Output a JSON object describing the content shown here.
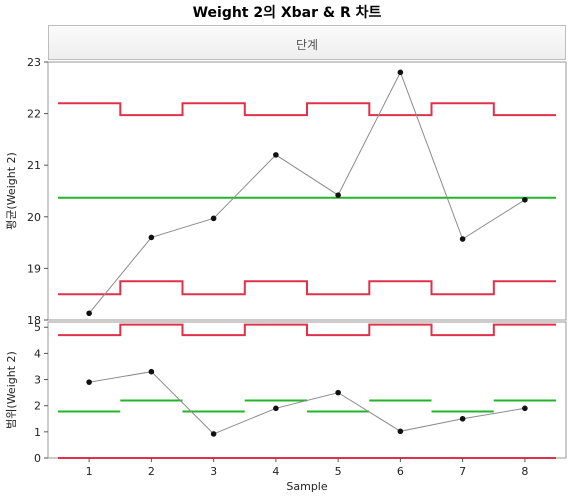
{
  "title": "Weight 2의 Xbar & R 차트",
  "phase_header": "단계",
  "chart_data": [
    {
      "type": "line",
      "name": "xbar",
      "ylabel": "평균(Weight 2)",
      "x": [
        1,
        2,
        3,
        4,
        5,
        6,
        7,
        8
      ],
      "values": [
        18.13,
        19.6,
        19.97,
        21.2,
        20.42,
        22.8,
        19.57,
        20.33
      ],
      "ylim": [
        18,
        23
      ],
      "yticks": [
        18,
        19,
        20,
        21,
        22,
        23
      ],
      "center_line": 20.37,
      "ucl": [
        22.2,
        21.97,
        22.2,
        21.97,
        22.2,
        21.97,
        22.2,
        21.97
      ],
      "lcl": [
        18.5,
        18.75,
        18.5,
        18.75,
        18.5,
        18.75,
        18.5,
        18.75
      ]
    },
    {
      "type": "line",
      "name": "range",
      "ylabel": "범위(Weight 2)",
      "x": [
        1,
        2,
        3,
        4,
        5,
        6,
        7,
        8
      ],
      "xlabel": "Sample",
      "xticks": [
        1,
        2,
        3,
        4,
        5,
        6,
        7,
        8
      ],
      "values": [
        2.9,
        3.3,
        0.92,
        1.9,
        2.5,
        1.02,
        1.5,
        1.9
      ],
      "ylim": [
        0,
        5.2
      ],
      "yticks": [
        0,
        1,
        2,
        3,
        4,
        5
      ],
      "center_line": [
        1.78,
        2.2,
        1.78,
        2.2,
        1.78,
        2.2,
        1.78,
        2.2
      ],
      "ucl": [
        4.7,
        5.1,
        4.7,
        5.1,
        4.7,
        5.1,
        4.7,
        5.1
      ],
      "lcl": 0
    }
  ],
  "colors": {
    "limit": "#e0304a",
    "center": "#22b52a",
    "series": "#8c8c8c",
    "point": "#111111"
  }
}
